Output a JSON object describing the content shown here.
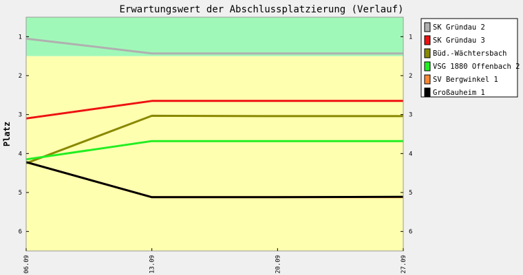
{
  "chart_data": {
    "type": "line",
    "title": "Erwartungswert der Abschlussplatzierung (Verlauf)",
    "ylabel": "Platz",
    "xlabel": "",
    "ylim": [
      0.5,
      6.5
    ],
    "y_inverted": true,
    "yticks": [
      1,
      2,
      3,
      4,
      5,
      6
    ],
    "categories": [
      "06.09",
      "13.09",
      "20.09",
      "27.09"
    ],
    "bands": [
      {
        "from": 0.5,
        "to": 1.5,
        "color": "#a0f8b8"
      },
      {
        "from": 1.5,
        "to": 6.5,
        "color": "#ffffb0"
      }
    ],
    "grid": false,
    "legend_position": "right",
    "series": [
      {
        "name": "SK Gründau 2",
        "color": "#b0b0b0",
        "values": [
          1.05,
          1.43,
          1.43,
          1.43
        ]
      },
      {
        "name": "SK Gründau 3",
        "color": "#ee1111",
        "values": [
          3.1,
          2.65,
          2.65,
          2.65
        ]
      },
      {
        "name": "Büd.-Wächtersbach",
        "color": "#888800",
        "values": [
          4.25,
          3.03,
          3.04,
          3.04
        ]
      },
      {
        "name": "VSG 1880 Offenbach 2",
        "color": "#22ee22",
        "values": [
          4.15,
          3.68,
          3.68,
          3.68
        ]
      },
      {
        "name": "SV Bergwinkel 1",
        "color": "#ff8833",
        "values": [
          4.22,
          5.12,
          5.12,
          5.12
        ]
      },
      {
        "name": "Großauheim 1",
        "color": "#000000",
        "values": [
          4.22,
          5.12,
          5.12,
          5.11
        ]
      }
    ]
  }
}
